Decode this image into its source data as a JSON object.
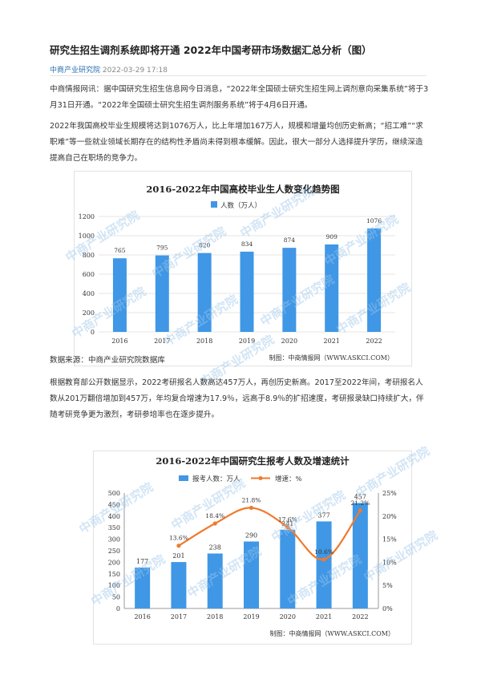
{
  "article": {
    "title": "研究生招生调剂系统即将开通 2022年中国考研市场数据汇总分析（图）",
    "source": "中商产业研究院",
    "datetime": "2022-03-29 17:18",
    "paragraphs": [
      "中商情报网讯：据中国研究生招生信息网今日消息，“2022年全国硕士研究生招生网上调剂意向采集系统”将于3月31日开通。“2022年全国硕士研究生招生调剂服务系统”将于4月6日开通。",
      "2022年我国高校毕业生规模将达到1076万人，比上年增加167万人，规模和增量均创历史新高；“招工难”“求职难”等一些就业领域长期存在的结构性矛盾尚未得到根本缓解。因此，很大一部分人选择提升学历，继续深造提高自己在职场的竞争力。",
      "数据来源：中商产业研究院数据库",
      "根据教育部公开数据显示，2022考研报名人数高达457万人，再创历史新高。2017至2022年间，考研报名人数从201万翻倍增加到457万，年均复合增速为17.9％，远高于8.9％的扩招速度，考研报录缺口持续扩大，伴随考研竞争更为激烈，考研参培率也在逐步提升。"
    ]
  },
  "watermark": "中商产业研究院",
  "chart_data": [
    {
      "type": "bar",
      "title": "2016-2022年中国高校毕业生人数变化趋势图",
      "categories": [
        "2016",
        "2017",
        "2018",
        "2019",
        "2020",
        "2021",
        "2022"
      ],
      "series": [
        {
          "name": "人数（万人）",
          "values": [
            765,
            795,
            820,
            834,
            874,
            909,
            1076
          ]
        }
      ],
      "ylim": [
        0,
        1200
      ],
      "yticks": [
        0,
        200,
        400,
        600,
        800,
        1000,
        1200
      ],
      "legend": "top",
      "grid": true,
      "credit": "制图：中商情报网（WWW.ASKCI.COM）",
      "color": "#3f97e6"
    },
    {
      "type": "bar",
      "title": "2016-2022年中国研究生报考人数及增速统计",
      "categories": [
        "2016",
        "2017",
        "2018",
        "2019",
        "2020",
        "2021",
        "2022"
      ],
      "series": [
        {
          "name": "报考人数：万人",
          "type": "bar",
          "values": [
            177,
            201,
            238,
            290,
            341,
            377,
            457
          ]
        },
        {
          "name": "增速：%",
          "type": "line",
          "values": [
            null,
            13.6,
            18.4,
            21.8,
            17.6,
            10.6,
            21.2
          ]
        }
      ],
      "data_labels_growth": [
        "",
        "13.6%",
        "18.4%",
        "21.8%",
        "17.6%",
        "10.6%",
        "21.2%"
      ],
      "ylim": [
        0,
        500
      ],
      "yticks": [
        0,
        50,
        100,
        150,
        200,
        250,
        300,
        350,
        400,
        450,
        500
      ],
      "y2lim": [
        0,
        25
      ],
      "y2ticks": [
        "0%",
        "5%",
        "10%",
        "15%",
        "20%",
        "25%"
      ],
      "legend": "top",
      "grid": false,
      "credit": "制图：中商情报网（WWW.ASKCI.COM）",
      "bar_color": "#3f97e6",
      "line_color": "#f07a2e"
    }
  ]
}
